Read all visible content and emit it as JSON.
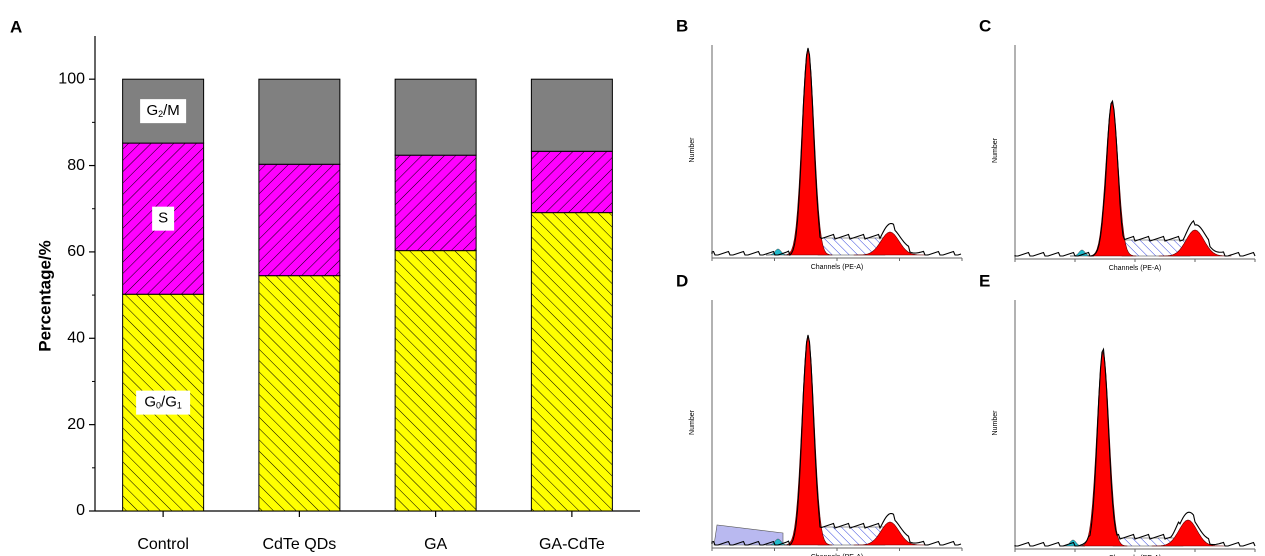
{
  "panel_label": "A",
  "chart_data": {
    "type": "stacked-bar",
    "ylabel": "Percentage/%",
    "categories": [
      "Control",
      "CdTe QDs",
      "GA",
      "GA-CdTe"
    ],
    "series": [
      {
        "name": "G0/G1",
        "color": "#ffff00",
        "hatch": "backslash",
        "values": [
          50.2,
          54.5,
          60.3,
          69.1
        ]
      },
      {
        "name": "S",
        "color": "#ff00ff",
        "hatch": "slash",
        "values": [
          35.0,
          25.8,
          22.1,
          14.2
        ]
      },
      {
        "name": "G2/M",
        "color": "#808080",
        "hatch": null,
        "values": [
          14.8,
          19.7,
          17.6,
          16.7
        ]
      }
    ],
    "ylim": [
      0,
      110
    ],
    "yticks": [
      0,
      20,
      40,
      60,
      80,
      100
    ]
  },
  "histograms": {
    "ylabel": "Number",
    "xlabel": "Channels (PE-A)",
    "panels": [
      {
        "letter": "B"
      },
      {
        "letter": "C"
      },
      {
        "letter": "D"
      },
      {
        "letter": "E"
      }
    ]
  }
}
